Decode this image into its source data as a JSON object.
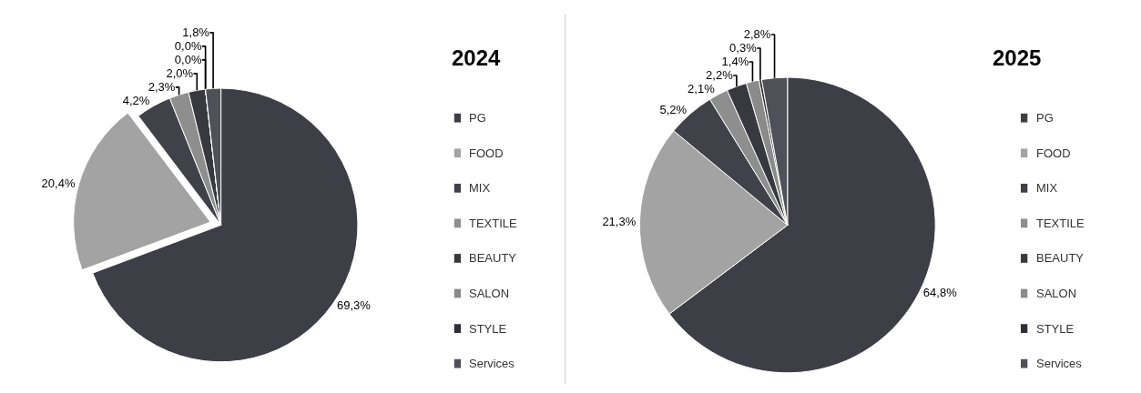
{
  "chart_data": [
    {
      "type": "pie",
      "title": "2024",
      "categories": [
        "PG",
        "FOOD",
        "MIX",
        "TEXTILE",
        "BEAUTY",
        "SALON",
        "STYLE",
        "Services"
      ],
      "values": [
        69.3,
        20.4,
        4.2,
        2.3,
        2.0,
        0.0,
        0.0,
        1.8
      ],
      "value_labels": [
        "69,3%",
        "20,4%",
        "4,2%",
        "2,3%",
        "2,0%",
        "0,0%",
        "0,0%",
        "1,8%"
      ],
      "colors": [
        "#3e3e46",
        "#a3a3a3",
        "#414149",
        "#8e8e8e",
        "#38383f",
        "#8a8a8a",
        "#2f2f36",
        "#505058"
      ],
      "legend": "right"
    },
    {
      "type": "pie",
      "title": "2025",
      "categories": [
        "PG",
        "FOOD",
        "MIX",
        "TEXTILE",
        "BEAUTY",
        "SALON",
        "STYLE",
        "Services"
      ],
      "values": [
        64.8,
        21.3,
        5.2,
        2.1,
        2.2,
        1.4,
        0.3,
        2.8
      ],
      "value_labels": [
        "64,8%",
        "21,3%",
        "5,2%",
        "2,1%",
        "2,2%",
        "1,4%",
        "0,3%",
        "2,8%"
      ],
      "colors": [
        "#3e3e46",
        "#a3a3a3",
        "#414149",
        "#8e8e8e",
        "#38383f",
        "#8a8a8a",
        "#2f2f36",
        "#505058"
      ],
      "legend": "right"
    }
  ]
}
